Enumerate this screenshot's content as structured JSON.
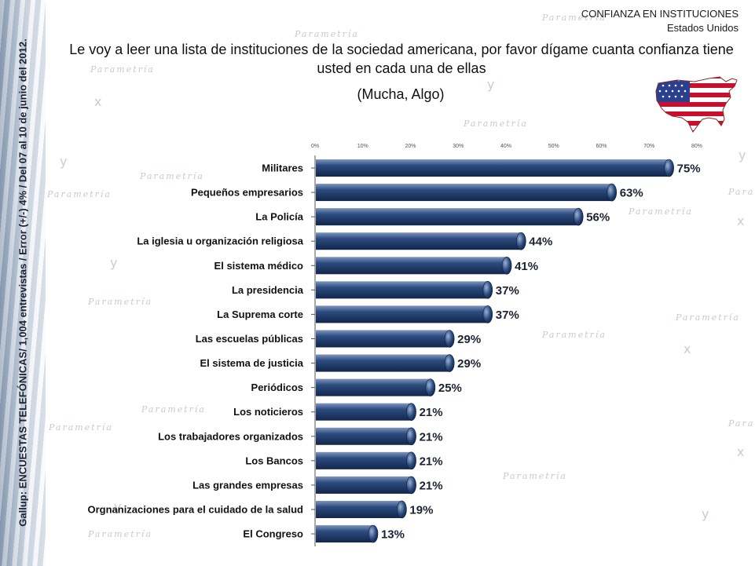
{
  "header": {
    "title": "CONFIANZA EN INSTITUCIONES",
    "subtitle": "Estados Unidos"
  },
  "question": "Le voy a leer una lista de instituciones de la sociedad americana, por favor dígame cuanta confianza tiene usted en cada una de ellas",
  "qualifier": "(Mucha, Algo)",
  "source_note": "Gallup: ENCUESTAS TELEFÓNICAS/ 1,004 entrevistas / Error (+/-) 4% / Del 07 al 10 de junio del 2012.",
  "watermark": "Parametría",
  "flag_icon": "usa-flag-map-icon",
  "colors": {
    "bar": "#1e3a66",
    "bar_highlight": "#7f97bd",
    "text": "#111111",
    "axis": "#666666"
  },
  "chart_data": {
    "type": "bar",
    "orientation": "horizontal",
    "categories": [
      "Militares",
      "Pequeños empresarios",
      "La Policía",
      "La iglesia u organización religiosa",
      "El sistema médico",
      "La presidencia",
      "La Suprema corte",
      "Las escuelas públicas",
      "El sistema de justicia",
      "Periódicos",
      "Los noticieros",
      "Los trabajadores organizados",
      "Los Bancos",
      "Las grandes empresas",
      "Orgnanizaciones para el cuidado de la salud",
      "El Congreso"
    ],
    "values": [
      75,
      63,
      56,
      44,
      41,
      37,
      37,
      29,
      29,
      25,
      21,
      21,
      21,
      21,
      19,
      13
    ],
    "value_labels": [
      "75%",
      "63%",
      "56%",
      "44%",
      "41%",
      "37%",
      "37%",
      "29%",
      "29%",
      "25%",
      "21%",
      "21%",
      "21%",
      "21%",
      "19%",
      "13%"
    ],
    "xticks": [
      "0%",
      "10%",
      "20%",
      "30%",
      "40%",
      "50%",
      "60%",
      "70%",
      "80%"
    ],
    "xlim": [
      0,
      80
    ],
    "grid": false,
    "legend": "none"
  }
}
